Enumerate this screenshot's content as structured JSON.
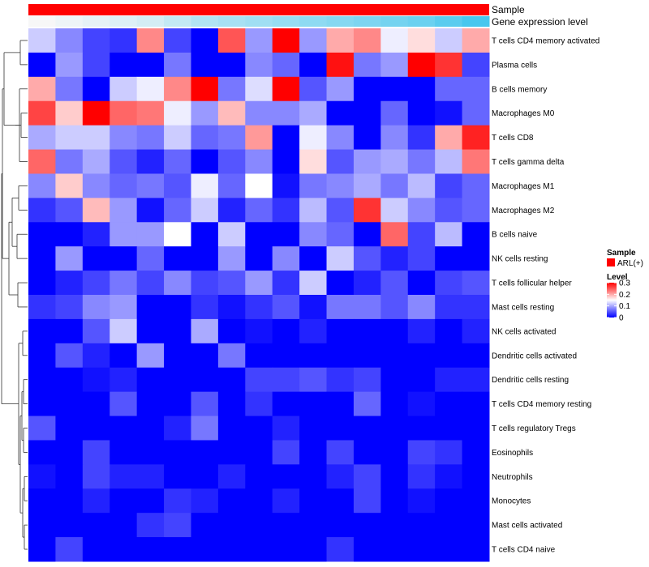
{
  "chart_data": {
    "type": "heatmap",
    "title": "",
    "annotation_rows": [
      {
        "label": "Sample",
        "value": "ARL(+)",
        "color": "#ff0000"
      },
      {
        "label": "Gene expression level",
        "gradient": [
          "#f7f7f7",
          "#48c7ee"
        ]
      }
    ],
    "rows": [
      "T cells CD4 memory activated",
      "Plasma cells",
      "B cells memory",
      "Macrophages M0",
      "T cells CD8",
      "T cells gamma delta",
      "Macrophages M1",
      "Macrophages M2",
      "B cells naive",
      "NK cells resting",
      "T cells follicular helper",
      "Mast cells resting",
      "NK cells activated",
      "Dendritic cells activated",
      "Dendritic cells resting",
      "T cells CD4 memory resting",
      "T cells regulatory  Tregs",
      "Eosinophils",
      "Neutrophils",
      "Monocytes",
      "Mast cells activated",
      "T cells CD4 naive"
    ],
    "values": [
      [
        0.12,
        0.08,
        0.04,
        0.03,
        0.22,
        0.04,
        0.0,
        0.25,
        0.09,
        0.3,
        0.09,
        0.2,
        0.22,
        0.14,
        0.17,
        0.12,
        0.2
      ],
      [
        0.0,
        0.09,
        0.04,
        0.0,
        0.0,
        0.07,
        0.0,
        0.0,
        0.08,
        0.06,
        0.0,
        0.29,
        0.07,
        0.09,
        0.3,
        0.27,
        0.04
      ],
      [
        0.2,
        0.07,
        0.0,
        0.12,
        0.14,
        0.22,
        0.3,
        0.07,
        0.13,
        0.3,
        0.05,
        0.09,
        0.0,
        0.0,
        0.0,
        0.06,
        0.06
      ],
      [
        0.26,
        0.18,
        0.3,
        0.24,
        0.23,
        0.14,
        0.09,
        0.19,
        0.08,
        0.08,
        0.1,
        0.0,
        0.0,
        0.06,
        0.0,
        0.01,
        0.06
      ],
      [
        0.1,
        0.12,
        0.12,
        0.08,
        0.07,
        0.12,
        0.06,
        0.07,
        0.21,
        0.0,
        0.14,
        0.08,
        0.0,
        0.08,
        0.03,
        0.2,
        0.28
      ],
      [
        0.24,
        0.07,
        0.1,
        0.05,
        0.02,
        0.06,
        0.0,
        0.05,
        0.08,
        0.0,
        0.17,
        0.05,
        0.09,
        0.1,
        0.07,
        0.11,
        0.23
      ],
      [
        0.08,
        0.18,
        0.08,
        0.06,
        0.07,
        0.05,
        0.14,
        0.06,
        0.15,
        0.01,
        0.07,
        0.08,
        0.1,
        0.07,
        0.11,
        0.04,
        0.06
      ],
      [
        0.03,
        0.05,
        0.19,
        0.09,
        0.01,
        0.06,
        0.12,
        0.02,
        0.06,
        0.03,
        0.11,
        0.05,
        0.27,
        0.12,
        0.08,
        0.05,
        0.06
      ],
      [
        0.0,
        0.0,
        0.02,
        0.09,
        0.09,
        0.15,
        0.0,
        0.12,
        0.0,
        0.0,
        0.08,
        0.06,
        0.0,
        0.24,
        0.04,
        0.11,
        0.0
      ],
      [
        0.0,
        0.09,
        0.0,
        0.0,
        0.06,
        0.0,
        0.0,
        0.09,
        0.0,
        0.08,
        0.0,
        0.12,
        0.05,
        0.02,
        0.04,
        0.0,
        0.0
      ],
      [
        0.0,
        0.02,
        0.04,
        0.07,
        0.04,
        0.08,
        0.04,
        0.05,
        0.09,
        0.03,
        0.12,
        0.0,
        0.02,
        0.05,
        0.0,
        0.04,
        0.05
      ],
      [
        0.03,
        0.04,
        0.08,
        0.09,
        0.0,
        0.0,
        0.03,
        0.01,
        0.03,
        0.05,
        0.01,
        0.07,
        0.07,
        0.05,
        0.08,
        0.03,
        0.03
      ],
      [
        0.0,
        0.0,
        0.05,
        0.12,
        0.0,
        0.0,
        0.1,
        0.0,
        0.01,
        0.0,
        0.02,
        0.0,
        0.0,
        0.0,
        0.02,
        0.0,
        0.02
      ],
      [
        0.0,
        0.05,
        0.02,
        0.0,
        0.09,
        0.0,
        0.0,
        0.07,
        0.0,
        0.0,
        0.0,
        0.0,
        0.0,
        0.0,
        0.0,
        0.0,
        0.0
      ],
      [
        0.0,
        0.0,
        0.01,
        0.02,
        0.0,
        0.0,
        0.0,
        0.0,
        0.04,
        0.04,
        0.05,
        0.03,
        0.04,
        0.0,
        0.0,
        0.02,
        0.02
      ],
      [
        0.0,
        0.0,
        0.0,
        0.05,
        0.0,
        0.0,
        0.05,
        0.0,
        0.03,
        0.0,
        0.0,
        0.0,
        0.06,
        0.0,
        0.01,
        0.0,
        0.0
      ],
      [
        0.05,
        0.0,
        0.0,
        0.0,
        0.0,
        0.02,
        0.07,
        0.0,
        0.0,
        0.02,
        0.0,
        0.0,
        0.0,
        0.0,
        0.0,
        0.0,
        0.0
      ],
      [
        0.0,
        0.0,
        0.04,
        0.0,
        0.0,
        0.0,
        0.0,
        0.0,
        0.0,
        0.04,
        0.0,
        0.04,
        0.0,
        0.0,
        0.04,
        0.03,
        0.0
      ],
      [
        0.01,
        0.0,
        0.04,
        0.02,
        0.02,
        0.0,
        0.0,
        0.02,
        0.0,
        0.0,
        0.0,
        0.02,
        0.04,
        0.0,
        0.03,
        0.01,
        0.0
      ],
      [
        0.0,
        0.0,
        0.02,
        0.0,
        0.0,
        0.03,
        0.02,
        0.0,
        0.0,
        0.02,
        0.0,
        0.0,
        0.04,
        0.0,
        0.01,
        0.0,
        0.0
      ],
      [
        0.0,
        0.0,
        0.0,
        0.0,
        0.03,
        0.04,
        0.0,
        0.0,
        0.0,
        0.0,
        0.0,
        0.0,
        0.0,
        0.0,
        0.0,
        0.0,
        0.0
      ],
      [
        0.0,
        0.04,
        0.0,
        0.0,
        0.0,
        0.0,
        0.0,
        0.0,
        0.0,
        0.0,
        0.0,
        0.03,
        0.0,
        0.0,
        0.0,
        0.0,
        0.0
      ]
    ],
    "expression_level": [
      0.0,
      0.05,
      0.1,
      0.15,
      0.2,
      0.3,
      0.4,
      0.45,
      0.5,
      0.55,
      0.6,
      0.65,
      0.7,
      0.75,
      0.8,
      0.9,
      1.0
    ],
    "color_scale": {
      "low": "#0000ff",
      "mid": "#ffffff",
      "high": "#ff0000",
      "min": 0,
      "mid_value": 0.15,
      "max": 0.3
    },
    "legend": {
      "sample_title": "Sample",
      "sample_entry": "ARL(+)",
      "sample_color": "#ff0000",
      "level_title": "Level",
      "level_ticks": [
        "0.3",
        "0.2",
        "0.1",
        "0"
      ],
      "level_tick_values": [
        0.3,
        0.2,
        0.1,
        0
      ]
    },
    "dendrogram": true
  }
}
